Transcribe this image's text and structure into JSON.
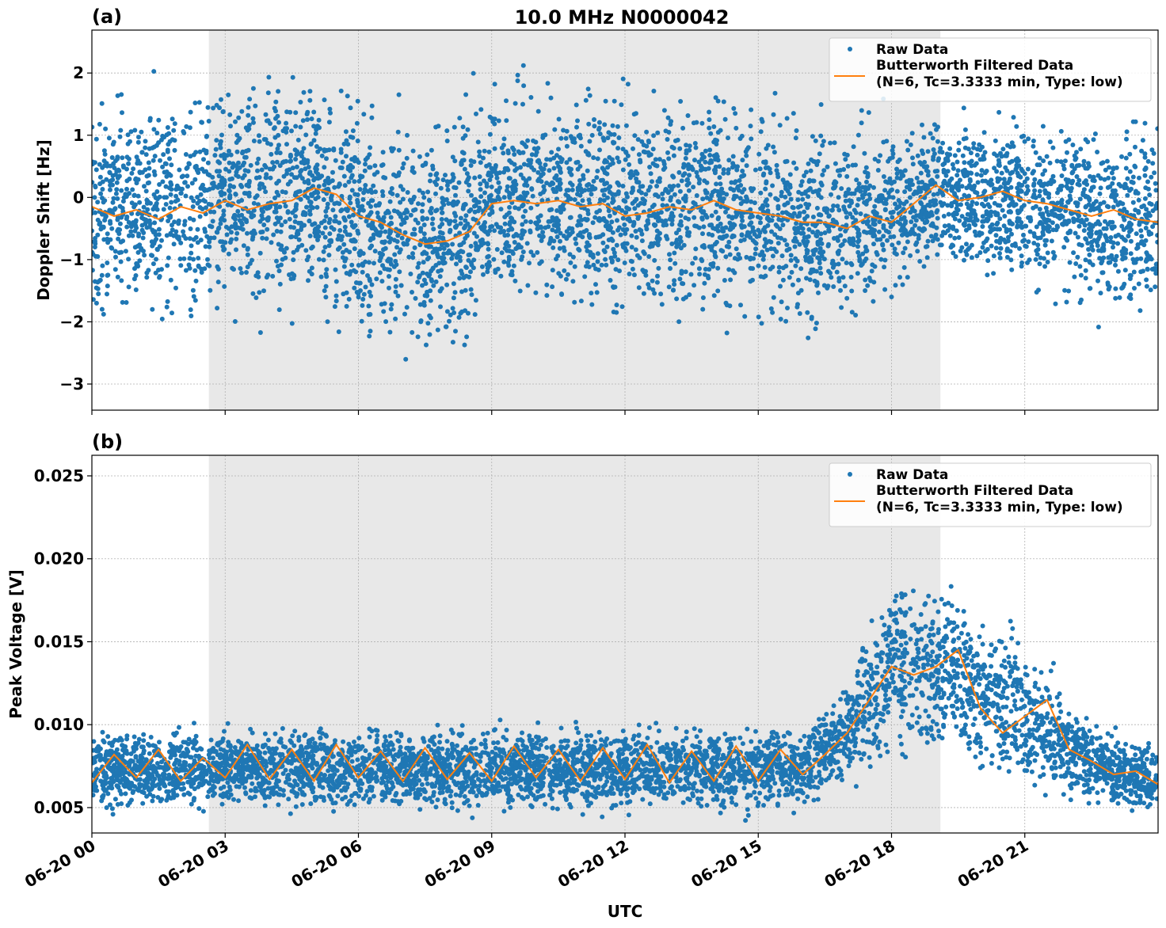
{
  "title": "10.0 MHz N0000042",
  "colors": {
    "raw": "#1f77b4",
    "filtered": "#ff7f0e",
    "shade": "#e8e8e8",
    "grid": "#b0b0b0"
  },
  "chart_data": [
    {
      "type": "scatter",
      "panel_label": "(a)",
      "xlabel": "",
      "ylabel": "Doppler Shift [Hz]",
      "xlim": [
        "06-20 00:00",
        "06-21 00:00"
      ],
      "ylim": [
        -3.42,
        2.69
      ],
      "x_ticks": [
        "06-20 00",
        "06-20 03",
        "06-20 06",
        "06-20 09",
        "06-20 12",
        "06-20 15",
        "06-20 18",
        "06-20 21"
      ],
      "y_ticks": [
        2,
        1,
        0,
        -1,
        -2,
        -3
      ],
      "y_tick_labels": [
        "2",
        "1",
        "0",
        "−1",
        "−2",
        "−3"
      ],
      "grid": true,
      "shaded_interval": [
        "06-20 02:38",
        "06-20 19:06"
      ],
      "legend": {
        "placement": "top-right",
        "entries": [
          "Raw Data",
          "Butterworth Filtered Data",
          "(N=6, Tc=3.3333 min, Type: low)"
        ]
      },
      "series": [
        {
          "name": "Raw Data",
          "kind": "points",
          "x": [
            "00:00",
            "01:00",
            "02:00",
            "03:00",
            "04:00",
            "05:00",
            "06:00",
            "07:00",
            "08:00",
            "09:00",
            "10:00",
            "11:00",
            "12:00",
            "13:00",
            "14:00",
            "15:00",
            "16:00",
            "17:00",
            "18:00",
            "19:00",
            "20:00",
            "21:00",
            "22:00",
            "23:00",
            "24:00"
          ],
          "band_low": [
            -1.6,
            -1.6,
            -1.6,
            -1.5,
            -1.6,
            -1.5,
            -1.8,
            -2.2,
            -2.2,
            -1.4,
            -1.4,
            -1.5,
            -1.6,
            -1.6,
            -1.6,
            -1.8,
            -1.9,
            -1.7,
            -1.3,
            -0.9,
            -1.1,
            -1.2,
            -1.5,
            -1.8,
            -1.9
          ],
          "band_high": [
            1.3,
            1.3,
            1.4,
            1.5,
            1.5,
            1.6,
            1.2,
            0.9,
            0.9,
            1.5,
            1.5,
            1.4,
            1.3,
            1.4,
            1.5,
            1.2,
            1.0,
            0.8,
            1.0,
            1.0,
            1.1,
            1.1,
            1.1,
            1.0,
            1.0
          ]
        },
        {
          "name": "Butterworth Filtered Data",
          "kind": "line",
          "x": [
            "00:00",
            "00:30",
            "01:00",
            "01:30",
            "02:00",
            "02:30",
            "03:00",
            "03:30",
            "04:00",
            "04:30",
            "05:00",
            "05:30",
            "06:00",
            "06:30",
            "07:00",
            "07:30",
            "08:00",
            "08:30",
            "09:00",
            "09:30",
            "10:00",
            "10:30",
            "11:00",
            "11:30",
            "12:00",
            "12:30",
            "13:00",
            "13:30",
            "14:00",
            "14:30",
            "15:00",
            "15:30",
            "16:00",
            "16:30",
            "17:00",
            "17:30",
            "18:00",
            "18:30",
            "19:00",
            "19:30",
            "20:00",
            "20:30",
            "21:00",
            "21:30",
            "22:00",
            "22:30",
            "23:00",
            "23:30",
            "24:00"
          ],
          "y": [
            -0.15,
            -0.3,
            -0.2,
            -0.35,
            -0.15,
            -0.25,
            -0.05,
            -0.2,
            -0.1,
            -0.05,
            0.15,
            0.05,
            -0.3,
            -0.4,
            -0.6,
            -0.75,
            -0.7,
            -0.55,
            -0.1,
            -0.05,
            -0.1,
            -0.05,
            -0.15,
            -0.1,
            -0.3,
            -0.25,
            -0.15,
            -0.2,
            -0.05,
            -0.2,
            -0.25,
            -0.3,
            -0.4,
            -0.4,
            -0.5,
            -0.3,
            -0.4,
            -0.1,
            0.2,
            -0.05,
            0.0,
            0.1,
            -0.05,
            -0.1,
            -0.2,
            -0.3,
            -0.2,
            -0.35,
            -0.4
          ]
        }
      ]
    },
    {
      "type": "scatter",
      "panel_label": "(b)",
      "xlabel": "UTC",
      "ylabel": "Peak Voltage [V]",
      "xlim": [
        "06-20 00:00",
        "06-21 00:00"
      ],
      "ylim": [
        0.00347,
        0.02624
      ],
      "x_ticks": [
        "06-20 00",
        "06-20 03",
        "06-20 06",
        "06-20 09",
        "06-20 12",
        "06-20 15",
        "06-20 18",
        "06-20 21"
      ],
      "y_ticks": [
        0.025,
        0.02,
        0.015,
        0.01,
        0.005
      ],
      "y_tick_labels": [
        "0.025",
        "0.020",
        "0.015",
        "0.010",
        "0.005"
      ],
      "grid": true,
      "shaded_interval": [
        "06-20 02:38",
        "06-20 19:06"
      ],
      "legend": {
        "placement": "top-right",
        "entries": [
          "Raw Data",
          "Butterworth Filtered Data",
          "(N=6, Tc=3.3333 min, Type: low)"
        ]
      },
      "series": [
        {
          "name": "Raw Data",
          "kind": "points",
          "x": [
            "00:00",
            "01:00",
            "02:00",
            "03:00",
            "04:00",
            "05:00",
            "06:00",
            "07:00",
            "08:00",
            "09:00",
            "10:00",
            "11:00",
            "12:00",
            "13:00",
            "14:00",
            "15:00",
            "16:00",
            "17:00",
            "18:00",
            "19:00",
            "20:00",
            "21:00",
            "22:00",
            "23:00",
            "24:00"
          ],
          "band_low": [
            0.0053,
            0.0053,
            0.0053,
            0.0054,
            0.0054,
            0.0053,
            0.0054,
            0.0054,
            0.0053,
            0.0053,
            0.0053,
            0.0053,
            0.0052,
            0.0053,
            0.0053,
            0.0053,
            0.0055,
            0.0068,
            0.009,
            0.009,
            0.0078,
            0.007,
            0.006,
            0.0052,
            0.005
          ],
          "band_high": [
            0.0092,
            0.0092,
            0.0093,
            0.0094,
            0.0095,
            0.0095,
            0.0094,
            0.0093,
            0.0094,
            0.0095,
            0.0094,
            0.0094,
            0.0093,
            0.0094,
            0.0094,
            0.0094,
            0.0095,
            0.012,
            0.0185,
            0.0185,
            0.0155,
            0.0145,
            0.011,
            0.009,
            0.0085
          ]
        },
        {
          "name": "Butterworth Filtered Data",
          "kind": "line",
          "x": [
            "00:00",
            "00:30",
            "01:00",
            "01:30",
            "02:00",
            "02:30",
            "03:00",
            "03:30",
            "04:00",
            "04:30",
            "05:00",
            "05:30",
            "06:00",
            "06:30",
            "07:00",
            "07:30",
            "08:00",
            "08:30",
            "09:00",
            "09:30",
            "10:00",
            "10:30",
            "11:00",
            "11:30",
            "12:00",
            "12:30",
            "13:00",
            "13:30",
            "14:00",
            "14:30",
            "15:00",
            "15:30",
            "16:00",
            "16:30",
            "17:00",
            "17:30",
            "18:00",
            "18:30",
            "19:00",
            "19:30",
            "20:00",
            "20:30",
            "21:00",
            "21:30",
            "22:00",
            "22:30",
            "23:00",
            "23:30",
            "24:00"
          ],
          "y": [
            0.0065,
            0.0082,
            0.0068,
            0.0085,
            0.0066,
            0.008,
            0.0068,
            0.0088,
            0.0067,
            0.0085,
            0.0066,
            0.0088,
            0.0068,
            0.0084,
            0.0066,
            0.0086,
            0.0067,
            0.0083,
            0.0066,
            0.0087,
            0.0068,
            0.0085,
            0.0066,
            0.0086,
            0.0067,
            0.0088,
            0.0065,
            0.0084,
            0.0066,
            0.0087,
            0.0066,
            0.0085,
            0.007,
            0.0082,
            0.0095,
            0.0115,
            0.0135,
            0.013,
            0.0135,
            0.0145,
            0.011,
            0.0095,
            0.0105,
            0.0115,
            0.0085,
            0.0078,
            0.007,
            0.0072,
            0.0064
          ]
        }
      ]
    }
  ]
}
